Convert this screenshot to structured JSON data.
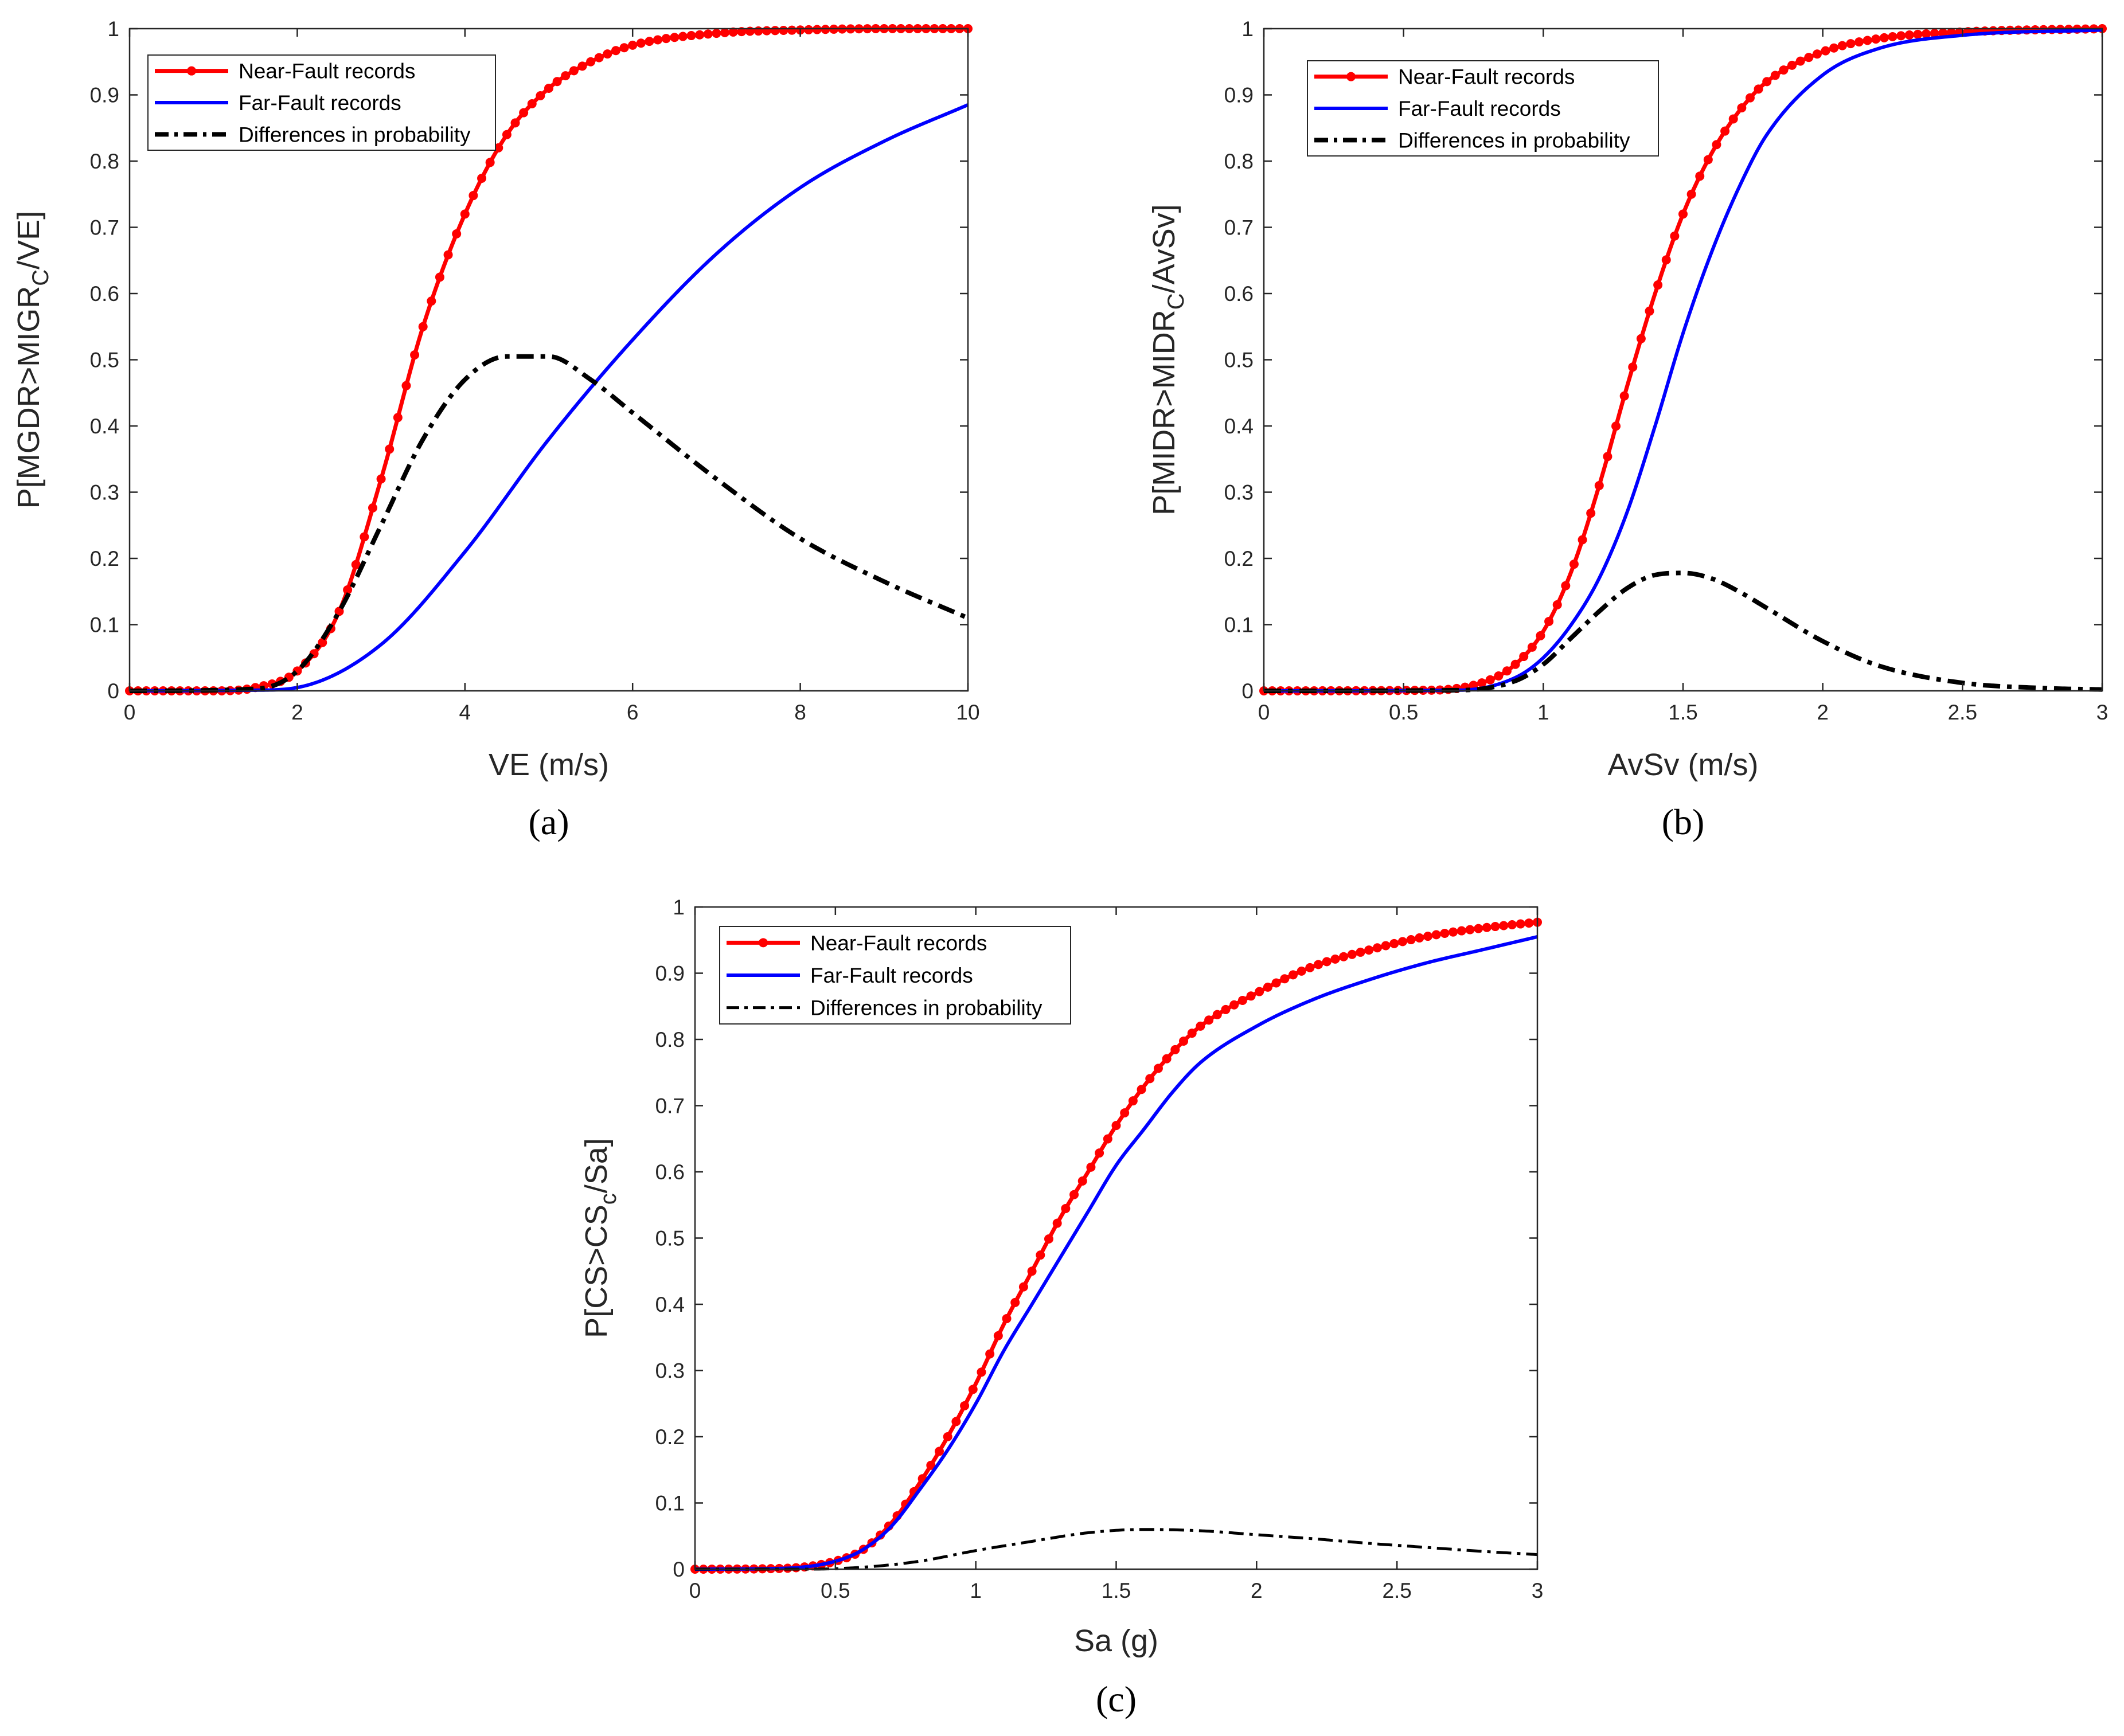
{
  "colors": {
    "near": "#ff0000",
    "far": "#0000ff",
    "diff": "#000000",
    "axes": "#262626"
  },
  "legend_labels": [
    "Near-Fault records",
    "Far-Fault records",
    "Differences in probability"
  ],
  "chart_data": [
    {
      "type": "line",
      "caption": "(a)",
      "xlabel": "VE (m/s)",
      "ylabel_prefix": "P[MGDR>MIGR",
      "ylabel_sub": "C",
      "ylabel_suffix": "/VE]",
      "xlim": [
        0,
        10
      ],
      "ylim": [
        0,
        1
      ],
      "xticks": [
        0,
        2,
        4,
        6,
        8,
        10
      ],
      "xtick_labels": [
        "0",
        "2",
        "4",
        "6",
        "8",
        "10"
      ],
      "yticks": [
        0,
        0.1,
        0.2,
        0.3,
        0.4,
        0.5,
        0.6,
        0.7,
        0.8,
        0.9,
        1
      ],
      "ytick_labels": [
        "0",
        "0.1",
        "0.2",
        "0.3",
        "0.4",
        "0.5",
        "0.6",
        "0.7",
        "0.8",
        "0.9",
        "1"
      ],
      "legend_position": "top-left",
      "series": [
        {
          "name": "Near-Fault records",
          "style": "solid-markers",
          "x": [
            0,
            1,
            1.5,
            2,
            2.5,
            3,
            3.5,
            4,
            4.5,
            5,
            5.5,
            6,
            7,
            8,
            9,
            10
          ],
          "y": [
            0,
            0,
            0.005,
            0.03,
            0.12,
            0.32,
            0.55,
            0.72,
            0.84,
            0.91,
            0.95,
            0.975,
            0.993,
            0.998,
            1.0,
            1.0
          ]
        },
        {
          "name": "Far-Fault records",
          "style": "solid",
          "x": [
            0,
            1.5,
            2,
            3,
            4,
            5,
            6,
            7,
            8,
            9,
            10
          ],
          "y": [
            0,
            0.001,
            0.005,
            0.07,
            0.21,
            0.38,
            0.53,
            0.66,
            0.76,
            0.83,
            0.885
          ]
        },
        {
          "name": "Differences in probability",
          "style": "dashdot",
          "x": [
            0,
            1.5,
            2,
            2.5,
            3,
            3.5,
            4,
            4.5,
            5,
            5.5,
            6,
            7,
            8,
            9,
            10
          ],
          "y": [
            0,
            0.003,
            0.03,
            0.12,
            0.25,
            0.38,
            0.47,
            0.505,
            0.505,
            0.47,
            0.42,
            0.32,
            0.23,
            0.165,
            0.11
          ]
        }
      ]
    },
    {
      "type": "line",
      "caption": "(b)",
      "xlabel": "AvSv (m/s)",
      "ylabel_prefix": "P[MIDR>MIDR",
      "ylabel_sub": "C",
      "ylabel_suffix": "/AvSv]",
      "xlim": [
        0,
        3
      ],
      "ylim": [
        0,
        1
      ],
      "xticks": [
        0,
        0.5,
        1,
        1.5,
        2,
        2.5,
        3
      ],
      "xtick_labels": [
        "0",
        "0.5",
        "1",
        "1.5",
        "2",
        "2.5",
        "3"
      ],
      "yticks": [
        0,
        0.1,
        0.2,
        0.3,
        0.4,
        0.5,
        0.6,
        0.7,
        0.8,
        0.9,
        1
      ],
      "ytick_labels": [
        "0",
        "0.1",
        "0.2",
        "0.3",
        "0.4",
        "0.5",
        "0.6",
        "0.7",
        "0.8",
        "0.9",
        "1"
      ],
      "legend_position": "top-left",
      "series": [
        {
          "name": "Near-Fault records",
          "style": "solid-markers",
          "x": [
            0,
            0.6,
            0.8,
            0.9,
            1.0,
            1.1,
            1.2,
            1.3,
            1.4,
            1.5,
            1.6,
            1.7,
            1.8,
            2.0,
            2.2,
            2.5,
            3.0
          ],
          "y": [
            0,
            0.001,
            0.015,
            0.04,
            0.09,
            0.18,
            0.31,
            0.46,
            0.6,
            0.72,
            0.81,
            0.875,
            0.92,
            0.965,
            0.985,
            0.995,
            1.0
          ]
        },
        {
          "name": "Far-Fault records",
          "style": "solid",
          "x": [
            0,
            0.7,
            0.9,
            1.0,
            1.1,
            1.2,
            1.3,
            1.4,
            1.5,
            1.6,
            1.7,
            1.8,
            2.0,
            2.2,
            2.5,
            3.0
          ],
          "y": [
            0,
            0.001,
            0.02,
            0.05,
            0.1,
            0.17,
            0.27,
            0.4,
            0.54,
            0.66,
            0.76,
            0.84,
            0.93,
            0.97,
            0.99,
            0.998
          ]
        },
        {
          "name": "Differences in probability",
          "style": "dashdot",
          "x": [
            0,
            0.7,
            0.9,
            1.0,
            1.1,
            1.2,
            1.3,
            1.4,
            1.5,
            1.6,
            1.7,
            1.8,
            2.0,
            2.2,
            2.5,
            2.8,
            3.0
          ],
          "y": [
            0,
            0.001,
            0.015,
            0.04,
            0.08,
            0.12,
            0.155,
            0.175,
            0.178,
            0.17,
            0.15,
            0.125,
            0.075,
            0.038,
            0.012,
            0.004,
            0.002
          ]
        }
      ]
    },
    {
      "type": "line",
      "caption": "(c)",
      "xlabel": "Sa (g)",
      "ylabel_prefix": "P[CS>CS",
      "ylabel_sub": "c",
      "ylabel_suffix": "/Sa]",
      "xlim": [
        0,
        3
      ],
      "ylim": [
        0,
        1
      ],
      "xticks": [
        0,
        0.5,
        1,
        1.5,
        2,
        2.5,
        3
      ],
      "xtick_labels": [
        "0",
        "0.5",
        "1",
        "1.5",
        "2",
        "2.5",
        "3"
      ],
      "yticks": [
        0,
        0.1,
        0.2,
        0.3,
        0.4,
        0.5,
        0.6,
        0.7,
        0.8,
        0.9,
        1
      ],
      "ytick_labels": [
        "0",
        "0.1",
        "0.2",
        "0.3",
        "0.4",
        "0.5",
        "0.6",
        "0.7",
        "0.8",
        "0.9",
        "1"
      ],
      "legend_position": "top-left",
      "series": [
        {
          "name": "Near-Fault records",
          "style": "solid-markers",
          "x": [
            0,
            0.3,
            0.5,
            0.6,
            0.7,
            0.8,
            0.9,
            1.0,
            1.1,
            1.2,
            1.3,
            1.4,
            1.5,
            1.6,
            1.7,
            1.8,
            2.0,
            2.2,
            2.4,
            2.6,
            2.8,
            3.0
          ],
          "y": [
            0,
            0.001,
            0.012,
            0.03,
            0.07,
            0.13,
            0.2,
            0.28,
            0.37,
            0.45,
            0.53,
            0.6,
            0.67,
            0.73,
            0.78,
            0.82,
            0.87,
            0.91,
            0.935,
            0.955,
            0.968,
            0.977
          ]
        },
        {
          "name": "Far-Fault records",
          "style": "solid",
          "x": [
            0,
            0.3,
            0.5,
            0.6,
            0.7,
            0.8,
            0.9,
            1.0,
            1.1,
            1.2,
            1.3,
            1.4,
            1.5,
            1.6,
            1.7,
            1.8,
            2.0,
            2.2,
            2.4,
            2.6,
            2.8,
            3.0
          ],
          "y": [
            0,
            0.001,
            0.012,
            0.03,
            0.065,
            0.12,
            0.18,
            0.25,
            0.33,
            0.4,
            0.47,
            0.54,
            0.61,
            0.665,
            0.72,
            0.765,
            0.82,
            0.86,
            0.89,
            0.915,
            0.935,
            0.955
          ]
        },
        {
          "name": "Differences in probability",
          "style": "dashdot",
          "x": [
            0,
            0.4,
            0.6,
            0.8,
            1.0,
            1.2,
            1.4,
            1.6,
            1.8,
            2.0,
            2.2,
            2.4,
            2.6,
            2.8,
            3.0
          ],
          "y": [
            0,
            0.0,
            0.003,
            0.012,
            0.028,
            0.042,
            0.055,
            0.06,
            0.058,
            0.052,
            0.046,
            0.039,
            0.033,
            0.027,
            0.022
          ]
        }
      ]
    }
  ]
}
